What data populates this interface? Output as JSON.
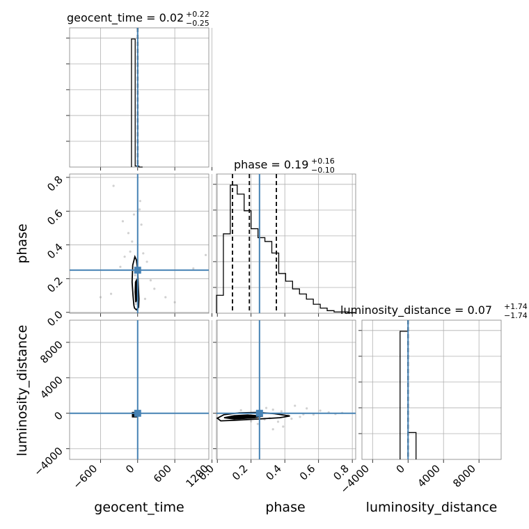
{
  "chart_data": {
    "type": "corner",
    "parameters": [
      "geocent_time",
      "phase",
      "luminosity_distance"
    ],
    "titles": [
      {
        "param": "geocent_time",
        "text": "geocent_time = 0.02",
        "upper": "+0.22",
        "lower": "−0.25"
      },
      {
        "param": "phase",
        "text": "phase = 0.19",
        "upper": "+0.16",
        "lower": "−0.10"
      },
      {
        "param": "luminosity_distance",
        "text": "luminosity_distance = 0.07",
        "upper": "+1.74",
        "lower": "−1.74"
      }
    ],
    "truths": {
      "geocent_time": 0,
      "phase": 0.25,
      "luminosity_distance": 0
    },
    "quantiles": {
      "geocent_time": [
        -0.23,
        0.02,
        0.24
      ],
      "phase": [
        0.09,
        0.19,
        0.35
      ],
      "luminosity_distance": [
        -1.67,
        0.07,
        1.81
      ]
    },
    "ranges": {
      "geocent_time": [
        -1100,
        1150
      ],
      "phase": [
        -0.005,
        0.82
      ],
      "luminosity_distance": [
        -5200,
        10500
      ]
    },
    "ticks": {
      "geocent_time": {
        "values": [
          -600,
          0,
          600,
          1200
        ],
        "labels": [
          "−600",
          "0",
          "600",
          "1200"
        ]
      },
      "phase": {
        "values": [
          0.0,
          0.2,
          0.4,
          0.6,
          0.8
        ],
        "labels": [
          "0.0",
          "0.2",
          "0.4",
          "0.6",
          "0.8"
        ]
      },
      "luminosity_distance": {
        "values": [
          -4000,
          0,
          4000,
          8000
        ],
        "labels": [
          "−4000",
          "0",
          "4000",
          "8000"
        ]
      }
    },
    "axis_labels": {
      "x": [
        "geocent_time",
        "phase",
        "luminosity_distance"
      ],
      "y": [
        "phase",
        "luminosity_distance"
      ]
    },
    "histograms": {
      "geocent_time": {
        "edges": [
          -100,
          -40,
          20,
          80
        ],
        "counts": [
          1.0,
          0.008,
          0.0
        ]
      },
      "phase": {
        "edges": [
          -0.005,
          0.036,
          0.077,
          0.118,
          0.159,
          0.2,
          0.241,
          0.282,
          0.323,
          0.364,
          0.405,
          0.446,
          0.487,
          0.528,
          0.569,
          0.61,
          0.651,
          0.692,
          0.733,
          0.774,
          0.815
        ],
        "counts": [
          0.14,
          0.62,
          1.0,
          0.93,
          0.8,
          0.66,
          0.59,
          0.56,
          0.47,
          0.31,
          0.25,
          0.19,
          0.15,
          0.11,
          0.07,
          0.04,
          0.02,
          0.01,
          0.01,
          0.005
        ]
      },
      "luminosity_distance": {
        "edges": [
          -900,
          0,
          900
        ],
        "counts": [
          1.0,
          0.21
        ]
      }
    },
    "samples_geocent_phase": [
      [
        -390,
        0.75
      ],
      [
        -240,
        0.54
      ],
      [
        -210,
        0.33
      ],
      [
        -280,
        0.27
      ],
      [
        -430,
        0.11
      ],
      [
        -600,
        0.09
      ],
      [
        -150,
        0.47
      ],
      [
        -120,
        0.36
      ],
      [
        -90,
        0.42
      ],
      [
        -60,
        0.58
      ],
      [
        -40,
        0.22
      ],
      [
        30,
        0.61
      ],
      [
        60,
        0.52
      ],
      [
        90,
        0.35
      ],
      [
        150,
        0.3
      ],
      [
        210,
        0.19
      ],
      [
        270,
        0.14
      ],
      [
        1100,
        0.34
      ],
      [
        900,
        0.26
      ],
      [
        450,
        0.09
      ],
      [
        600,
        0.06
      ],
      [
        120,
        0.08
      ],
      [
        -30,
        0.05
      ],
      [
        40,
        0.66
      ]
    ],
    "samples_phase_ld": [
      [
        0.46,
        850
      ],
      [
        0.53,
        550
      ],
      [
        0.61,
        300
      ],
      [
        0.66,
        100
      ],
      [
        0.7,
        -80
      ],
      [
        0.74,
        40
      ],
      [
        0.57,
        -150
      ],
      [
        0.49,
        -400
      ],
      [
        0.42,
        -250
      ],
      [
        0.38,
        220
      ],
      [
        0.33,
        410
      ],
      [
        0.31,
        -550
      ],
      [
        0.28,
        -700
      ],
      [
        0.24,
        -1200
      ],
      [
        0.2,
        -900
      ],
      [
        0.16,
        -300
      ],
      [
        0.36,
        -950
      ],
      [
        0.39,
        -1500
      ],
      [
        0.44,
        -620
      ],
      [
        0.51,
        -120
      ],
      [
        0.29,
        600
      ],
      [
        0.33,
        -1800
      ],
      [
        0.26,
        250
      ],
      [
        0.14,
        350
      ]
    ],
    "contours": {
      "geocent_phase_outer": [
        [
          -60,
          0.04
        ],
        [
          -75,
          0.1
        ],
        [
          -90,
          0.18
        ],
        [
          -80,
          0.28
        ],
        [
          -45,
          0.33
        ],
        [
          -20,
          0.31
        ],
        [
          0,
          0.25
        ],
        [
          10,
          0.16
        ],
        [
          20,
          0.08
        ],
        [
          15,
          0.03
        ],
        [
          -20,
          0.015
        ],
        [
          -50,
          0.025
        ]
      ],
      "geocent_phase_inner": [
        [
          -30,
          0.06
        ],
        [
          -40,
          0.12
        ],
        [
          -35,
          0.18
        ],
        [
          -20,
          0.19
        ],
        [
          -10,
          0.14
        ],
        [
          -10,
          0.08
        ]
      ],
      "phase_ld_outer": [
        [
          0.0,
          -550
        ],
        [
          0.04,
          -150
        ],
        [
          0.13,
          50
        ],
        [
          0.24,
          100
        ],
        [
          0.34,
          -50
        ],
        [
          0.43,
          -300
        ],
        [
          0.37,
          -500
        ],
        [
          0.24,
          -650
        ],
        [
          0.1,
          -800
        ],
        [
          0.02,
          -850
        ]
      ],
      "phase_ld_inner": [
        [
          0.04,
          -500
        ],
        [
          0.1,
          -280
        ],
        [
          0.18,
          -200
        ],
        [
          0.27,
          -320
        ],
        [
          0.22,
          -500
        ],
        [
          0.1,
          -650
        ]
      ]
    }
  }
}
